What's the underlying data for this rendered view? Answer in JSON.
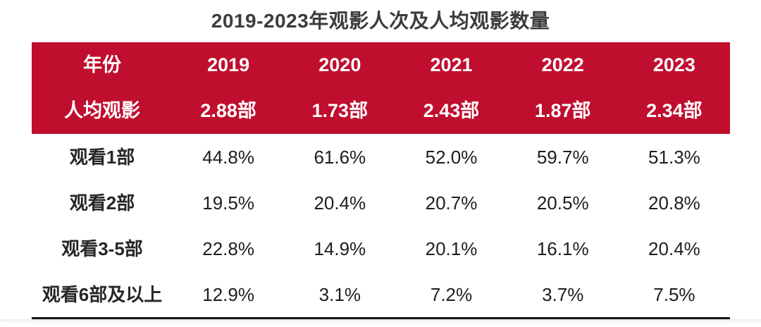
{
  "title": "2019-2023年观影人次及人均观影数量",
  "colors": {
    "header_bg": "#C00E2E",
    "header_text": "#FFFFFF",
    "title_text": "#3C3C3C",
    "body_text": "#1E1E1E",
    "bottom_rule": "#161616"
  },
  "chart_data": {
    "type": "table",
    "title": "2019-2023年观影人次及人均观影数量",
    "columns": [
      "年份",
      "2019",
      "2020",
      "2021",
      "2022",
      "2023"
    ],
    "header_rows": [
      {
        "label": "年份",
        "values": [
          "2019",
          "2020",
          "2021",
          "2022",
          "2023"
        ]
      },
      {
        "label": "人均观影",
        "values": [
          "2.88部",
          "1.73部",
          "2.43部",
          "1.87部",
          "2.34部"
        ]
      }
    ],
    "rows": [
      {
        "label": "观看1部",
        "values": [
          "44.8%",
          "61.6%",
          "52.0%",
          "59.7%",
          "51.3%"
        ]
      },
      {
        "label": "观看2部",
        "values": [
          "19.5%",
          "20.4%",
          "20.7%",
          "20.5%",
          "20.8%"
        ]
      },
      {
        "label": "观看3-5部",
        "values": [
          "22.8%",
          "14.9%",
          "20.1%",
          "16.1%",
          "20.4%"
        ]
      },
      {
        "label": "观看6部及以上",
        "values": [
          "12.9%",
          "3.1%",
          "7.2%",
          "3.7%",
          "7.5%"
        ]
      }
    ]
  }
}
